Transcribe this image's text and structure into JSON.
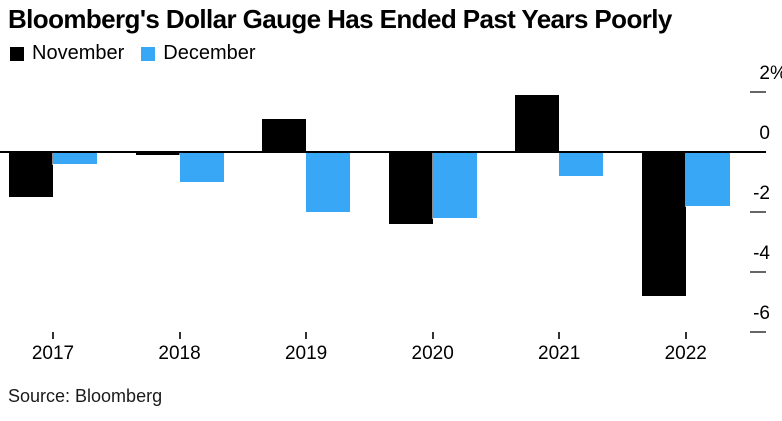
{
  "title": "Bloomberg's Dollar Gauge Has Ended Past Years Poorly",
  "source": "Source: Bloomberg",
  "colors": {
    "november": "#000000",
    "december": "#38a7f5",
    "axis_line": "#000000",
    "tick_dash": "#666666",
    "background": "#ffffff"
  },
  "chart_data": {
    "type": "bar",
    "title": "Bloomberg's Dollar Gauge Has Ended Past Years Poorly",
    "categories": [
      "2017",
      "2018",
      "2019",
      "2020",
      "2021",
      "2022"
    ],
    "series": [
      {
        "name": "November",
        "color": "#000000",
        "values": [
          -1.5,
          -0.1,
          1.1,
          -2.4,
          1.9,
          -4.8
        ]
      },
      {
        "name": "December",
        "color": "#38a7f5",
        "values": [
          -0.4,
          -1.0,
          -2.0,
          -2.2,
          -0.8,
          -1.8
        ]
      }
    ],
    "y_axis": {
      "unit": "%",
      "ticks": [
        2,
        0,
        -2,
        -4,
        -6
      ],
      "top_label": "2%",
      "side": "right"
    },
    "xlabel": "",
    "ylabel": "",
    "ylim": [
      -6.8,
      2.9
    ],
    "grid": false,
    "legend_position": "top-left"
  }
}
